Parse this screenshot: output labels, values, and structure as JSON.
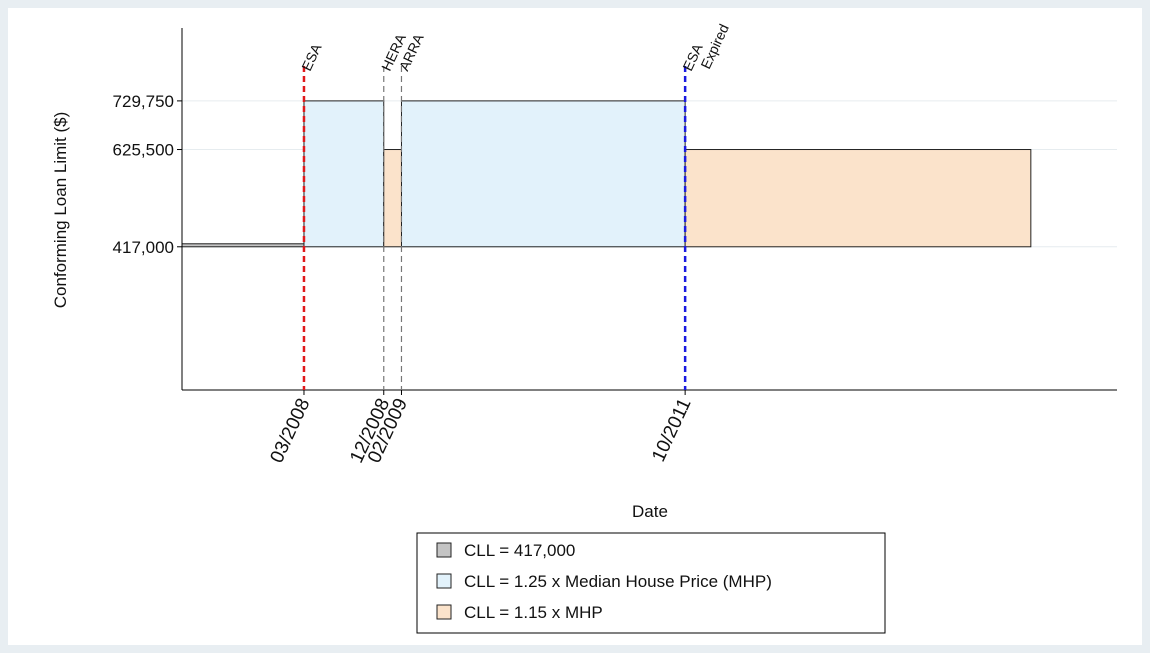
{
  "chart_data": {
    "type": "step-bands",
    "x_label": "Date",
    "y_label": "Conforming Loan Limit ($)",
    "xlim": [
      2007.02,
      2015.81
    ],
    "ylim": [
      110000,
      886000
    ],
    "base": 417000,
    "xticks": [
      {
        "value": 2008.1667,
        "label": "03/2008"
      },
      {
        "value": 2008.9167,
        "label": "12/2008"
      },
      {
        "value": 2009.0833,
        "label": "02/2009"
      },
      {
        "value": 2011.75,
        "label": "10/2011"
      }
    ],
    "yticks": [
      {
        "value": 417000,
        "label": "417,000"
      },
      {
        "value": 625500,
        "label": "625,500"
      },
      {
        "value": 729750,
        "label": "729,750"
      }
    ],
    "grid": true,
    "series": [
      {
        "name": "CLL = 417,000",
        "color": "#c4c4c4",
        "segments": [
          {
            "start": 2007.02,
            "end": 2008.1667,
            "value": 417000
          }
        ]
      },
      {
        "name": "CLL = 1.25 x Median House Price (MHP)",
        "color": "#e2f2fb",
        "segments": [
          {
            "start": 2008.1667,
            "end": 2008.9167,
            "value": 729750
          },
          {
            "start": 2009.0833,
            "end": 2011.75,
            "value": 729750
          }
        ]
      },
      {
        "name": "CLL = 1.15 x MHP",
        "color": "#fbe3cb",
        "segments": [
          {
            "start": 2008.9167,
            "end": 2009.0833,
            "value": 625500
          },
          {
            "start": 2011.75,
            "end": 2015.0,
            "value": 625500
          }
        ]
      }
    ],
    "events": [
      {
        "x": 2008.1667,
        "label": [
          "ESA"
        ],
        "color": "#e0191b",
        "width": 2.5
      },
      {
        "x": 2008.9167,
        "label": [
          "HERA"
        ],
        "color": "#777777",
        "width": 1.2
      },
      {
        "x": 2009.0833,
        "label": [
          "ARRA"
        ],
        "color": "#777777",
        "width": 1.2
      },
      {
        "x": 2011.75,
        "label": [
          "ESA",
          "Expired"
        ],
        "color": "#1a1ae0",
        "width": 2.5
      }
    ]
  }
}
